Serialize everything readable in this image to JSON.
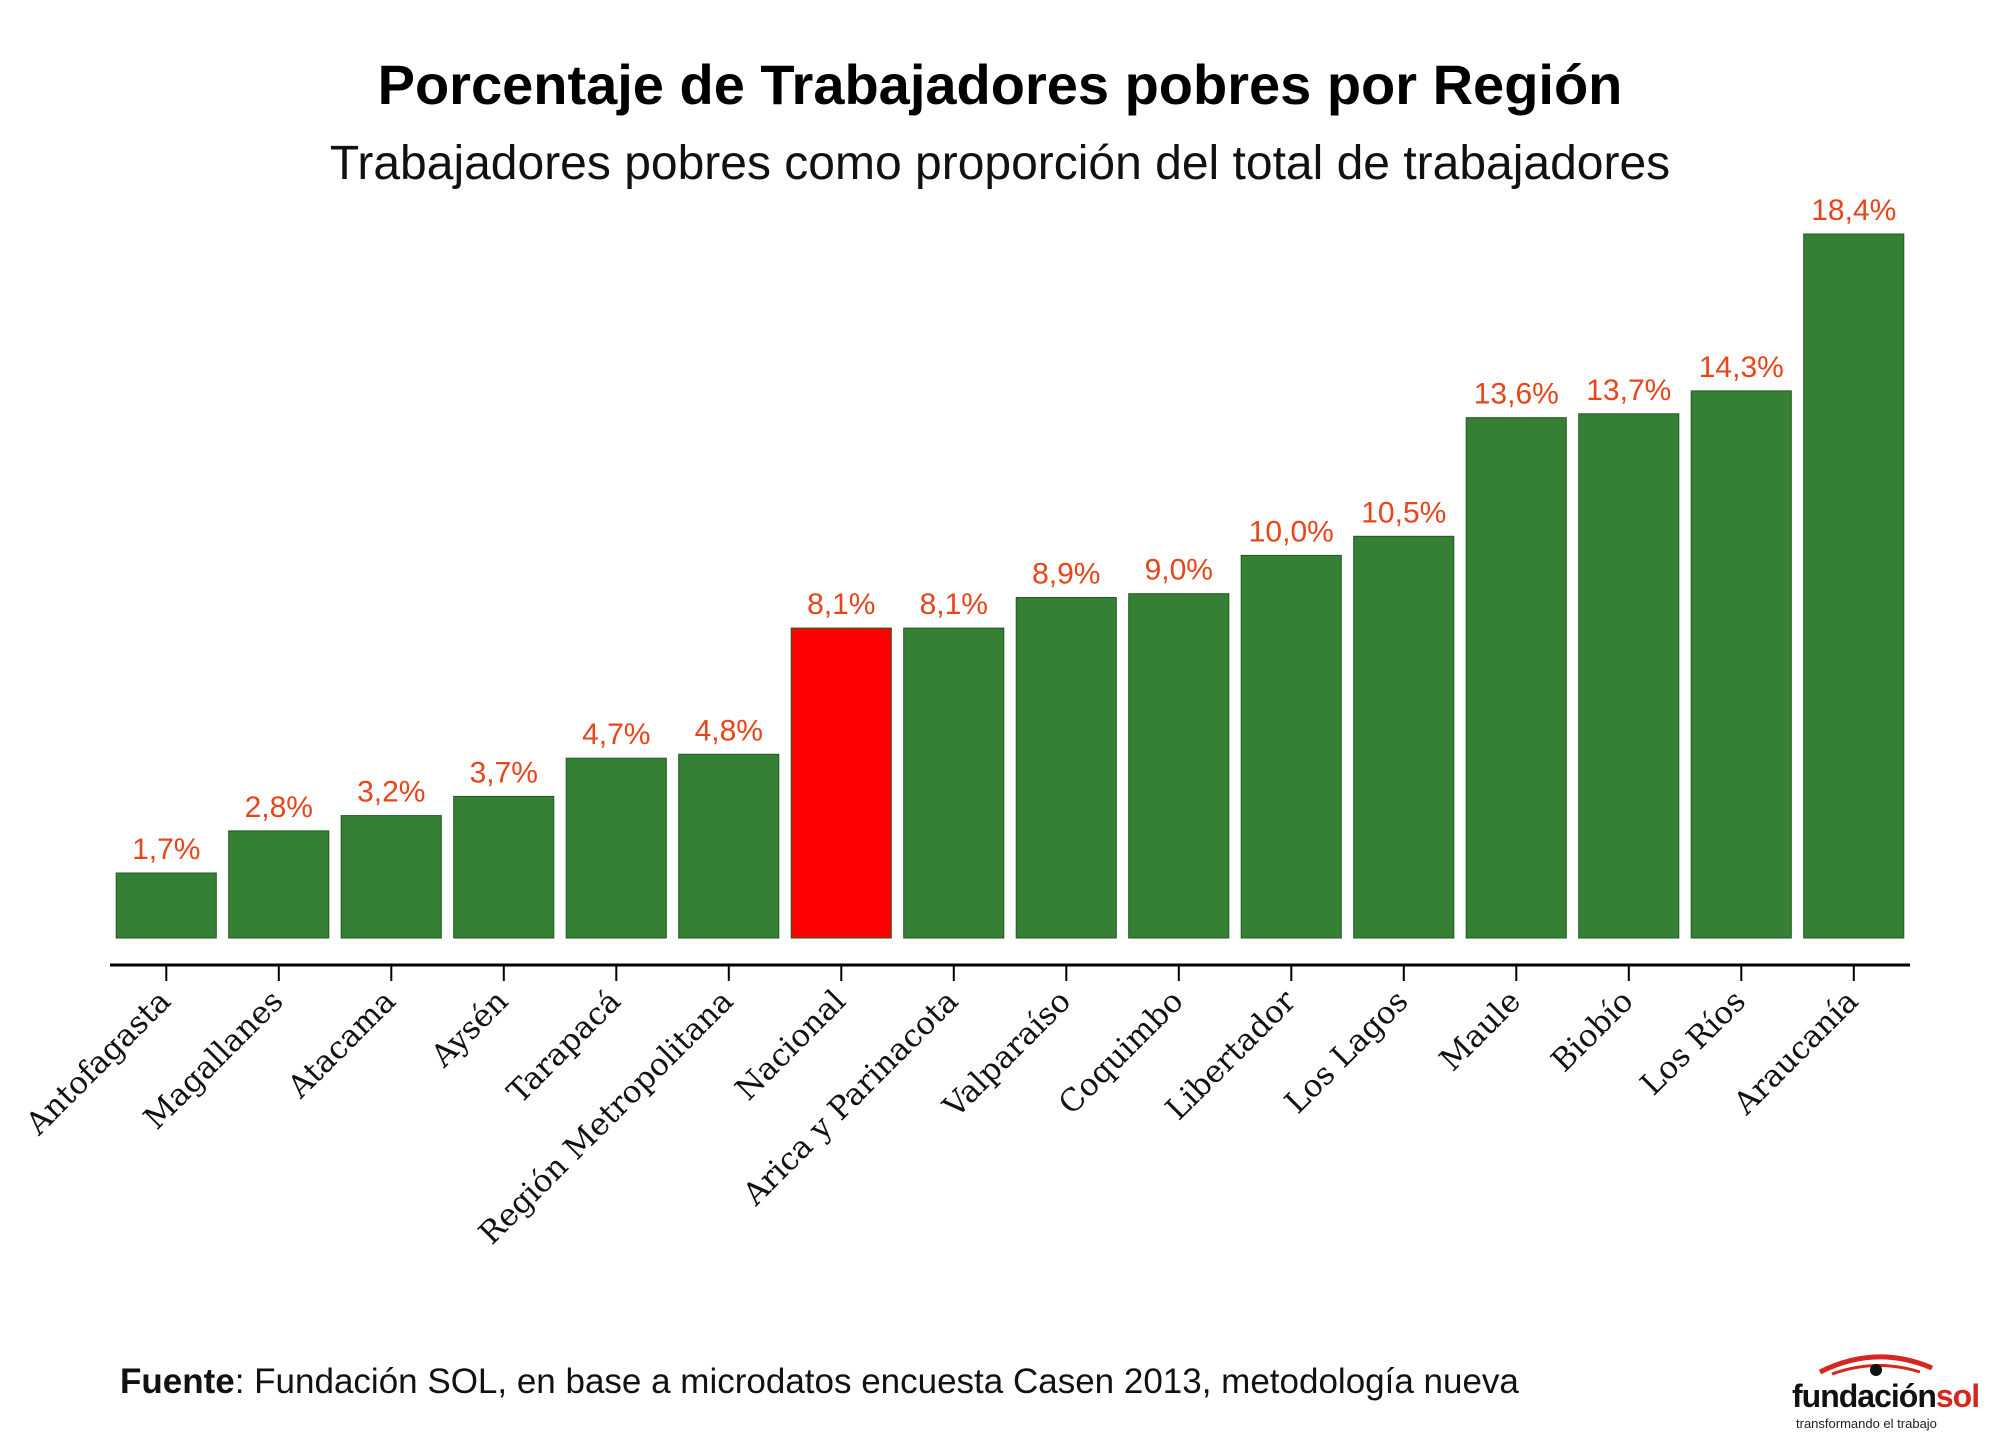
{
  "header": {
    "title": "Porcentaje de Trabajadores pobres por Región",
    "subtitle": "Trabajadores pobres como proporción del total de trabajadores"
  },
  "footer": {
    "source_label": "Fuente",
    "source_text": ": Fundación SOL, en base a microdatos encuesta Casen 2013, metodología nueva"
  },
  "logo": {
    "word1": "fundación",
    "word2": "sol",
    "tagline": "transformando el trabajo",
    "icon": "eye-logo-icon"
  },
  "colors": {
    "bar": "#358034",
    "highlight": "#ff0000",
    "label": "#e8451a",
    "axis": "#000000"
  },
  "chart_data": {
    "type": "bar",
    "title": "Porcentaje de Trabajadores pobres por Región",
    "subtitle": "Trabajadores pobres como proporción del total de trabajadores",
    "xlabel": "",
    "ylabel": "",
    "categories": [
      "Antofagasta",
      "Magallanes",
      "Atacama",
      "Aysén",
      "Tarapacá",
      "Región Metropolitana",
      "Nacional",
      "Arica y Parinacota",
      "Valparaíso",
      "Coquimbo",
      "Libertador",
      "Los Lagos",
      "Maule",
      "Biobío",
      "Los Ríos",
      "Araucanía"
    ],
    "values": [
      1.7,
      2.8,
      3.2,
      3.7,
      4.7,
      4.8,
      8.1,
      8.1,
      8.9,
      9.0,
      10.0,
      10.5,
      13.6,
      13.7,
      14.3,
      18.4
    ],
    "value_labels": [
      "1,7%",
      "2,8%",
      "3,2%",
      "3,7%",
      "4,7%",
      "4,8%",
      "8,1%",
      "8,1%",
      "8,9%",
      "9,0%",
      "10,0%",
      "10,5%",
      "13,6%",
      "13,7%",
      "14,3%",
      "18,4%"
    ],
    "highlight": "Nacional",
    "ylim": [
      0,
      18.4
    ],
    "grid": false,
    "legend": "none"
  }
}
